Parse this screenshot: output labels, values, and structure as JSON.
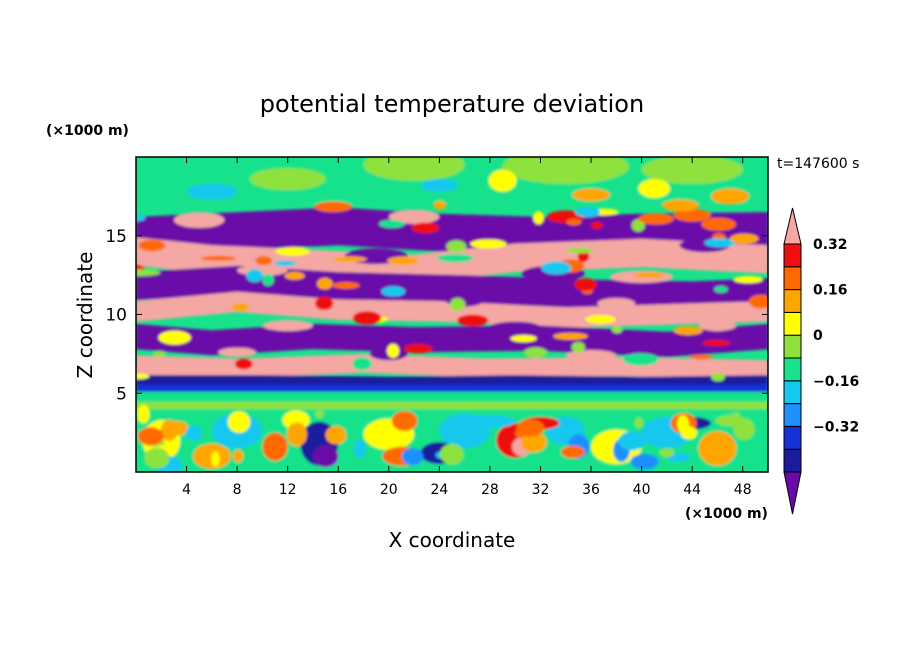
{
  "chart_data": {
    "type": "heatmap",
    "title": "potential temperature deviation",
    "time_label": "t=147600 s",
    "xlabel": "X coordinate",
    "ylabel": "Z coordinate",
    "x_unit": "(×1000 m)",
    "y_unit": "(×1000 m)",
    "xlim": [
      0,
      50
    ],
    "ylim": [
      0,
      20
    ],
    "x_ticks": [
      4,
      8,
      12,
      16,
      20,
      24,
      28,
      32,
      36,
      40,
      44,
      48
    ],
    "y_ticks": [
      5,
      10,
      15
    ],
    "colorbar": {
      "levels": [
        -0.48,
        -0.4,
        -0.32,
        -0.24,
        -0.16,
        -0.08,
        0,
        0.08,
        0.16,
        0.24,
        0.32,
        0.4
      ],
      "tick_values": [
        -0.32,
        -0.16,
        0,
        0.16,
        0.32
      ],
      "tick_labels": [
        "−0.32",
        "−0.16",
        "0",
        "0.16",
        "0.32"
      ],
      "colors": [
        "#6a0aa8",
        "#1b1b9e",
        "#1432d8",
        "#1e90ff",
        "#16c8ee",
        "#19e28c",
        "#8fe23c",
        "#ffff00",
        "#ffa500",
        "#ff6a00",
        "#ee1010",
        "#f4a7a3"
      ],
      "extend": "both"
    },
    "field_description": "Layered field: pink/purple banded layers between z≈5 and z≈17, mostly near-zero (green) above z≈17 and below z≈5, with small-scale mixed features below z≈5."
  }
}
